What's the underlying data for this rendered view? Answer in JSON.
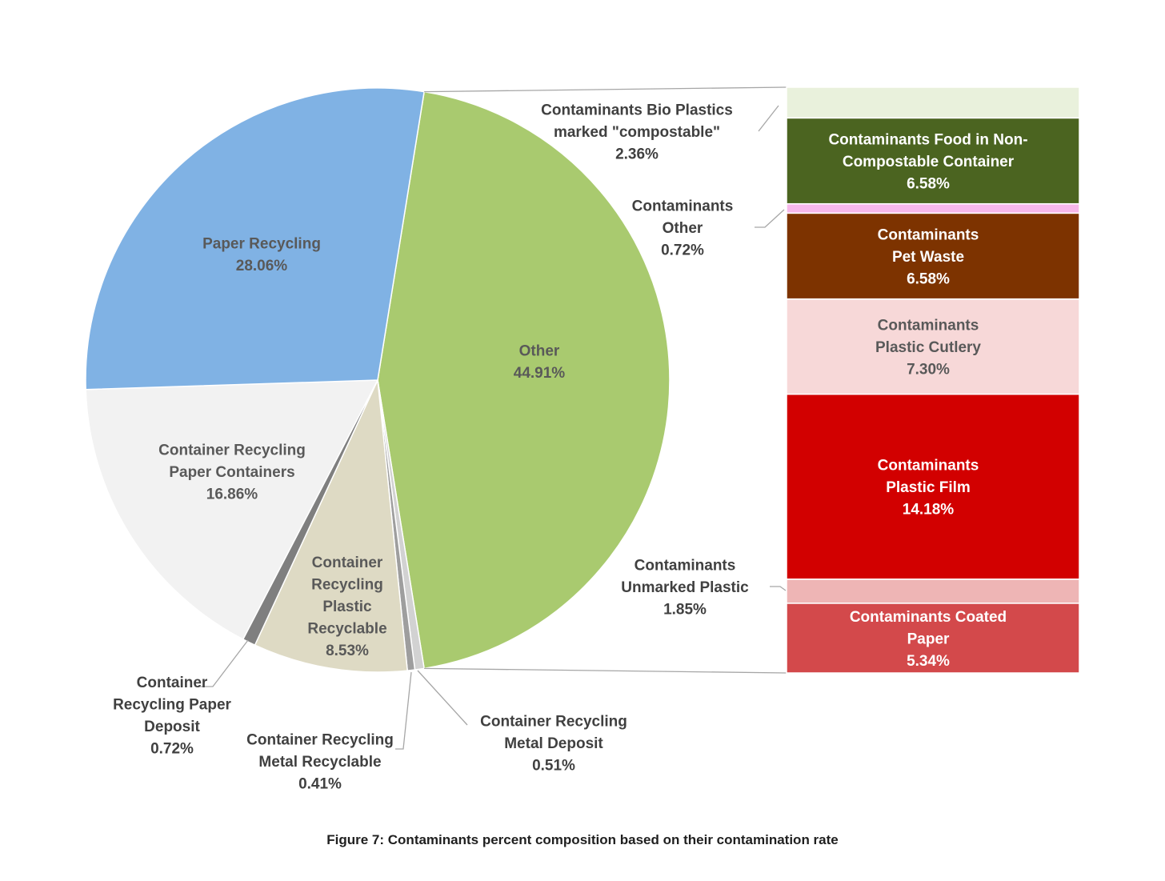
{
  "chart_data": {
    "type": "pie",
    "subtype": "bar-of-pie",
    "caption": "Figure 7: Contaminants percent composition based on their contamination rate",
    "slices": [
      {
        "label_lines": [
          "Other",
          "44.91%"
        ],
        "value": 44.91,
        "color": "#A9CA6F"
      },
      {
        "label_lines": [
          "Container Recycling",
          "Metal Deposit",
          "0.51%"
        ],
        "value": 0.51,
        "color": "#D2D2D2"
      },
      {
        "label_lines": [
          "Container Recycling",
          "Metal Recyclable",
          "0.41%"
        ],
        "value": 0.41,
        "color": "#9E9E9E"
      },
      {
        "label_lines": [
          "Container",
          "Recycling",
          "Plastic",
          "Recyclable",
          "8.53%"
        ],
        "value": 8.53,
        "color": "#DEDAC4"
      },
      {
        "label_lines": [
          "Container",
          "Recycling Paper",
          "Deposit",
          "0.72%"
        ],
        "value": 0.72,
        "color": "#7F7F7F"
      },
      {
        "label_lines": [
          "Container Recycling",
          "Paper Containers",
          "16.86%"
        ],
        "value": 16.86,
        "color": "#F2F2F2"
      },
      {
        "label_lines": [
          "Paper Recycling",
          "28.06%"
        ],
        "value": 28.06,
        "color": "#80B2E4"
      }
    ],
    "breakdown": [
      {
        "label_lines": [
          "Contaminants Bio Plastics",
          "marked \"compostable\"",
          "2.36%"
        ],
        "value": 2.36,
        "color": "#E9F1DC",
        "label_outside": true
      },
      {
        "label_lines": [
          "Contaminants Food in Non-",
          "Compostable Container",
          "6.58%"
        ],
        "value": 6.58,
        "color": "#4B6420",
        "text_color": "#ffffff"
      },
      {
        "label_lines": [
          "Contaminants",
          "Other",
          "0.72%"
        ],
        "value": 0.72,
        "color": "#F6B8EA",
        "label_outside": true
      },
      {
        "label_lines": [
          "Contaminants",
          "Pet Waste",
          "6.58%"
        ],
        "value": 6.58,
        "color": "#7D3300",
        "text_color": "#ffffff"
      },
      {
        "label_lines": [
          "Contaminants",
          "Plastic Cutlery",
          "7.30%"
        ],
        "value": 7.3,
        "color": "#F7D8D8",
        "text_color": "#595959"
      },
      {
        "label_lines": [
          "Contaminants",
          "Plastic Film",
          "14.18%"
        ],
        "value": 14.18,
        "color": "#D20000",
        "text_color": "#ffffff"
      },
      {
        "label_lines": [
          "Contaminants",
          "Unmarked Plastic",
          "1.85%"
        ],
        "value": 1.85,
        "color": "#EEB5B5",
        "label_outside": true
      },
      {
        "label_lines": [
          "Contaminants Coated",
          "Paper",
          "5.34%"
        ],
        "value": 5.34,
        "color": "#D3494B",
        "text_color": "#ffffff"
      }
    ]
  }
}
